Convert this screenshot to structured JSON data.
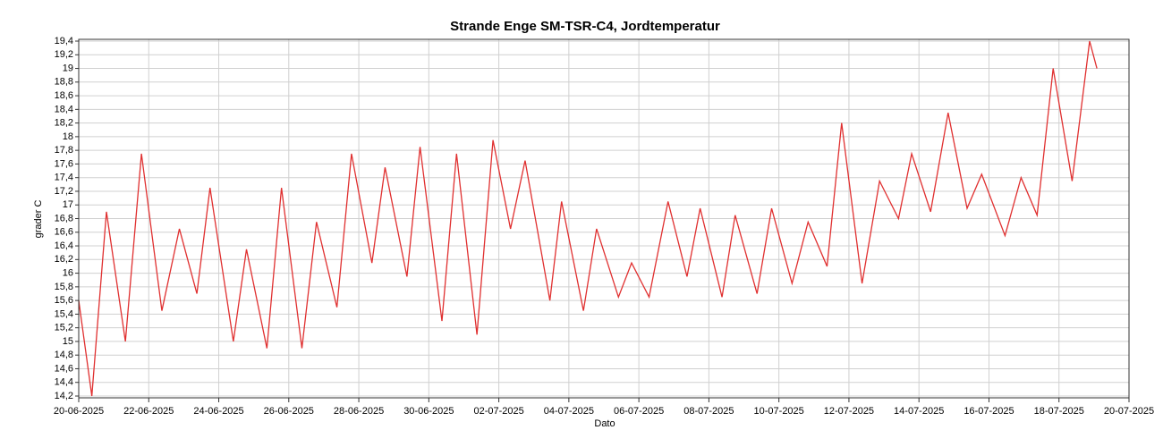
{
  "chart_data": {
    "type": "line",
    "title": "Strande Enge SM-TSR-C4, Jordtemperatur",
    "x_label": "Dato",
    "y_label": "grader C",
    "grid": true,
    "x": [
      "2025-06-20T00:00",
      "2025-06-20T09:00",
      "2025-06-20T19:00",
      "2025-06-21T08:00",
      "2025-06-21T19:00",
      "2025-06-22T09:00",
      "2025-06-22T21:00",
      "2025-06-23T09:00",
      "2025-06-23T18:00",
      "2025-06-24T10:00",
      "2025-06-24T19:00",
      "2025-06-25T09:00",
      "2025-06-25T19:00",
      "2025-06-26T09:00",
      "2025-06-26T19:00",
      "2025-06-27T09:00",
      "2025-06-27T19:00",
      "2025-06-28T09:00",
      "2025-06-28T18:00",
      "2025-06-29T09:00",
      "2025-06-29T18:00",
      "2025-06-30T09:00",
      "2025-06-30T19:00",
      "2025-07-01T09:00",
      "2025-07-01T20:00",
      "2025-07-02T08:00",
      "2025-07-02T18:00",
      "2025-07-03T11:00",
      "2025-07-03T19:00",
      "2025-07-04T10:00",
      "2025-07-04T19:00",
      "2025-07-05T10:00",
      "2025-07-05T19:00",
      "2025-07-06T07:00",
      "2025-07-06T20:00",
      "2025-07-07T09:00",
      "2025-07-07T18:00",
      "2025-07-08T09:00",
      "2025-07-08T18:00",
      "2025-07-09T09:00",
      "2025-07-09T19:00",
      "2025-07-10T09:00",
      "2025-07-10T20:00",
      "2025-07-11T09:00",
      "2025-07-11T19:00",
      "2025-07-12T09:00",
      "2025-07-12T21:00",
      "2025-07-13T10:00",
      "2025-07-13T19:00",
      "2025-07-14T08:00",
      "2025-07-14T20:00",
      "2025-07-15T09:00",
      "2025-07-15T19:00",
      "2025-07-16T11:00",
      "2025-07-16T22:00",
      "2025-07-17T09:00",
      "2025-07-17T20:00",
      "2025-07-18T09:00",
      "2025-07-18T21:00",
      "2025-07-19T02:00"
    ],
    "series": [
      {
        "name": "Jordtemperatur",
        "color": "#e03030",
        "values": [
          15.6,
          14.2,
          16.9,
          15.0,
          17.75,
          15.45,
          16.65,
          15.7,
          17.25,
          15.0,
          16.35,
          14.9,
          17.25,
          14.9,
          16.75,
          15.5,
          17.75,
          16.15,
          17.55,
          15.95,
          17.85,
          15.3,
          17.75,
          15.1,
          17.95,
          16.65,
          17.65,
          15.6,
          17.05,
          15.45,
          16.65,
          15.65,
          16.15,
          15.65,
          17.05,
          15.95,
          16.95,
          15.65,
          16.85,
          15.7,
          16.95,
          15.85,
          16.75,
          16.1,
          18.2,
          15.85,
          17.35,
          16.8,
          17.75,
          16.9,
          18.35,
          16.95,
          17.45,
          16.55,
          17.4,
          16.85,
          19.0,
          17.35,
          19.4,
          19.0
        ]
      }
    ],
    "xlim": [
      "2025-06-20",
      "2025-07-20"
    ],
    "xticks": [
      {
        "value": "2025-06-20",
        "label": "20-06-2025"
      },
      {
        "value": "2025-06-22",
        "label": "22-06-2025"
      },
      {
        "value": "2025-06-24",
        "label": "24-06-2025"
      },
      {
        "value": "2025-06-26",
        "label": "26-06-2025"
      },
      {
        "value": "2025-06-28",
        "label": "28-06-2025"
      },
      {
        "value": "2025-06-30",
        "label": "30-06-2025"
      },
      {
        "value": "2025-07-02",
        "label": "02-07-2025"
      },
      {
        "value": "2025-07-04",
        "label": "04-07-2025"
      },
      {
        "value": "2025-07-06",
        "label": "06-07-2025"
      },
      {
        "value": "2025-07-08",
        "label": "08-07-2025"
      },
      {
        "value": "2025-07-10",
        "label": "10-07-2025"
      },
      {
        "value": "2025-07-12",
        "label": "12-07-2025"
      },
      {
        "value": "2025-07-14",
        "label": "14-07-2025"
      },
      {
        "value": "2025-07-16",
        "label": "16-07-2025"
      },
      {
        "value": "2025-07-18",
        "label": "18-07-2025"
      },
      {
        "value": "2025-07-20",
        "label": "20-07-2025"
      }
    ],
    "ylim": [
      14.2,
      19.4
    ],
    "yticks": [
      {
        "value": 14.2,
        "label": "14,2"
      },
      {
        "value": 14.4,
        "label": "14,4"
      },
      {
        "value": 14.6,
        "label": "14,6"
      },
      {
        "value": 14.8,
        "label": "14,8"
      },
      15,
      {
        "value": 15.2,
        "label": "15,2"
      },
      {
        "value": 15.4,
        "label": "15,4"
      },
      {
        "value": 15.6,
        "label": "15,6"
      },
      {
        "value": 15.8,
        "label": "15,8"
      },
      16,
      {
        "value": 16.2,
        "label": "16,2"
      },
      {
        "value": 16.4,
        "label": "16,4"
      },
      {
        "value": 16.6,
        "label": "16,6"
      },
      {
        "value": 16.8,
        "label": "16,8"
      },
      17,
      {
        "value": 17.2,
        "label": "17,2"
      },
      {
        "value": 17.4,
        "label": "17,4"
      },
      {
        "value": 17.6,
        "label": "17,6"
      },
      {
        "value": 17.8,
        "label": "17,8"
      },
      18,
      {
        "value": 18.2,
        "label": "18,2"
      },
      {
        "value": 18.4,
        "label": "18,4"
      },
      {
        "value": 18.6,
        "label": "18,6"
      },
      {
        "value": 18.8,
        "label": "18,8"
      },
      19,
      {
        "value": 19.2,
        "label": "19,2"
      },
      {
        "value": 19.4,
        "label": "19,4"
      }
    ]
  }
}
